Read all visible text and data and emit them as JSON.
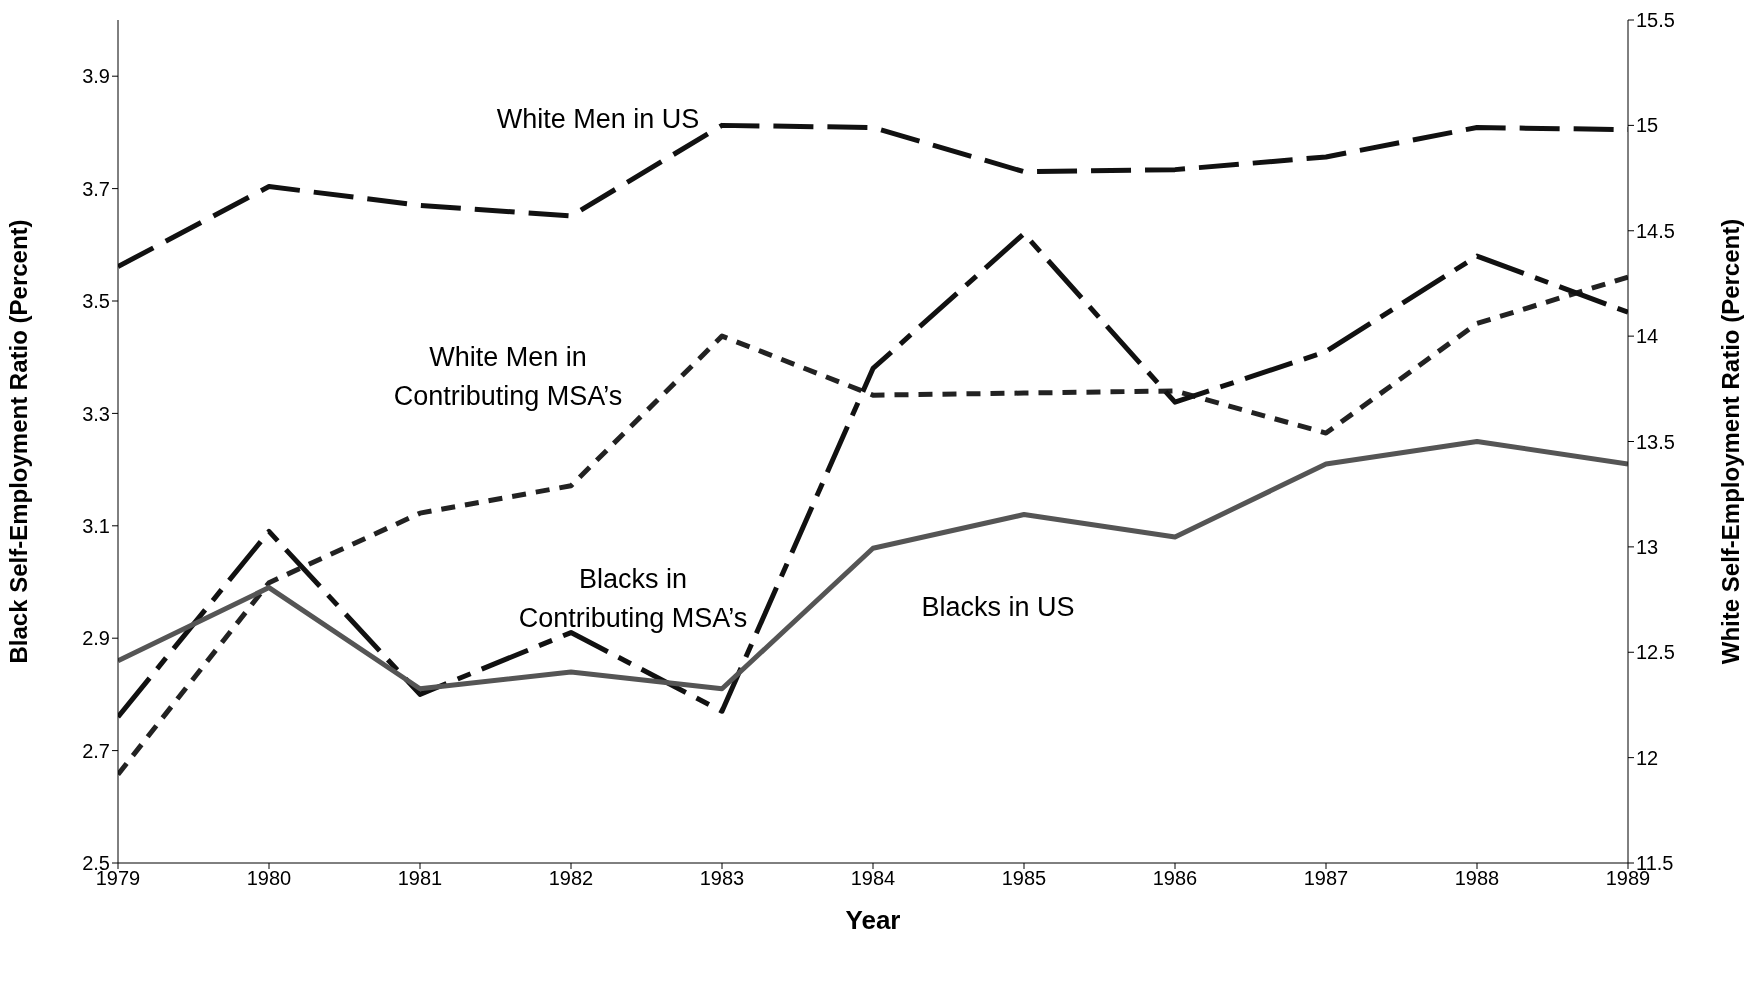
{
  "chart_data": {
    "type": "line",
    "xlabel": "Year",
    "ylabel": "Black Self-Employment Ratio (Percent)",
    "y2label": "White Self-Employment Ratio (Percent)",
    "x": [
      1979,
      1980,
      1981,
      1982,
      1983,
      1984,
      1985,
      1986,
      1987,
      1988,
      1989
    ],
    "xlim": [
      1979,
      1989
    ],
    "xticks": [
      1979,
      1980,
      1981,
      1982,
      1983,
      1984,
      1985,
      1986,
      1987,
      1988,
      1989
    ],
    "ylim": [
      2.5,
      4.0
    ],
    "yticks": [
      2.5,
      2.7,
      2.9,
      3.1,
      3.3,
      3.5,
      3.7,
      3.9
    ],
    "y2lim": [
      11.5,
      15.5
    ],
    "y2ticks": [
      11.5,
      12,
      12.5,
      13,
      13.5,
      14,
      14.5,
      15,
      15.5
    ],
    "marker": "none",
    "series": [
      {
        "name": "White Men in US",
        "color": "#111111",
        "axis": "y2",
        "line_style": "dashed",
        "values": [
          14.33,
          14.71,
          14.62,
          14.57,
          15.0,
          14.99,
          14.78,
          14.79,
          14.85,
          14.99,
          14.98
        ]
      },
      {
        "name": "White Men in Contributing MSA’s",
        "color": "#222222",
        "axis": "y2",
        "line_style": "dotted",
        "values": [
          11.92,
          12.83,
          13.16,
          13.29,
          14.0,
          13.72,
          13.73,
          13.74,
          13.54,
          14.06,
          14.28
        ]
      },
      {
        "name": "Blacks in Contributing MSA’s",
        "color": "#111111",
        "axis": "y",
        "line_style": "dashed",
        "values": [
          2.76,
          3.09,
          2.8,
          2.91,
          2.77,
          3.38,
          3.62,
          3.32,
          3.41,
          3.58,
          3.48
        ]
      },
      {
        "name": "Blacks in US",
        "color": "#555555",
        "axis": "y",
        "line_style": "solid",
        "values": [
          2.86,
          2.99,
          2.81,
          2.84,
          2.81,
          3.06,
          3.12,
          3.08,
          3.21,
          3.25,
          3.21
        ]
      }
    ]
  }
}
